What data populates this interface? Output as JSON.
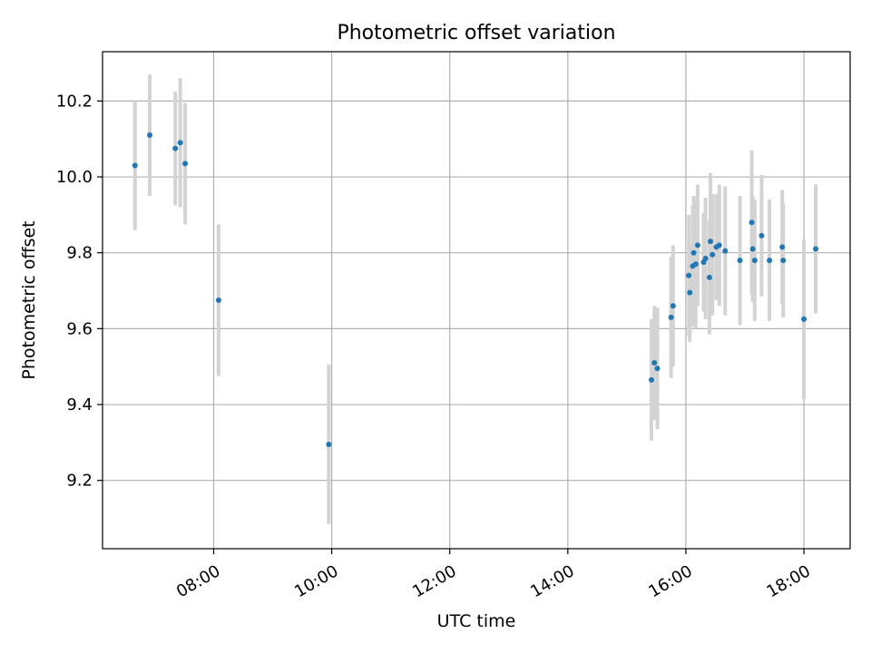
{
  "chart_data": {
    "type": "scatter",
    "title": "Photometric offset variation",
    "xlabel": "UTC time",
    "ylabel": "Photometric offset",
    "xlim": [
      "06:07",
      "18:47"
    ],
    "ylim": [
      9.02,
      10.33
    ],
    "x_ticks": [
      "08:00",
      "10:00",
      "12:00",
      "14:00",
      "16:00",
      "18:00"
    ],
    "y_ticks": [
      "9.2",
      "9.4",
      "9.6",
      "9.8",
      "10.0",
      "10.2"
    ],
    "grid": true,
    "colors": {
      "point": "#1f77b4",
      "errorbar": "#d3d3d3",
      "grid": "#b0b0b0"
    },
    "points": [
      {
        "x": "06:40",
        "y": 10.03,
        "err": 0.17
      },
      {
        "x": "06:55",
        "y": 10.11,
        "err": 0.16
      },
      {
        "x": "07:21",
        "y": 10.075,
        "err": 0.15
      },
      {
        "x": "07:26",
        "y": 10.09,
        "err": 0.17
      },
      {
        "x": "07:31",
        "y": 10.035,
        "err": 0.16
      },
      {
        "x": "08:05",
        "y": 9.675,
        "err": 0.2
      },
      {
        "x": "09:57",
        "y": 9.295,
        "err": 0.21
      },
      {
        "x": "15:25",
        "y": 9.465,
        "err": 0.16
      },
      {
        "x": "15:28",
        "y": 9.51,
        "err": 0.15
      },
      {
        "x": "15:31",
        "y": 9.495,
        "err": 0.16
      },
      {
        "x": "15:45",
        "y": 9.63,
        "err": 0.16
      },
      {
        "x": "15:47",
        "y": 9.66,
        "err": 0.16
      },
      {
        "x": "16:03",
        "y": 9.74,
        "err": 0.16
      },
      {
        "x": "16:04",
        "y": 9.695,
        "err": 0.13
      },
      {
        "x": "16:07",
        "y": 9.765,
        "err": 0.16
      },
      {
        "x": "16:08",
        "y": 9.8,
        "err": 0.15
      },
      {
        "x": "16:10",
        "y": 9.77,
        "err": 0.17
      },
      {
        "x": "16:12",
        "y": 9.82,
        "err": 0.16
      },
      {
        "x": "16:18",
        "y": 9.775,
        "err": 0.13
      },
      {
        "x": "16:20",
        "y": 9.785,
        "err": 0.16
      },
      {
        "x": "16:24",
        "y": 9.735,
        "err": 0.15
      },
      {
        "x": "16:25",
        "y": 9.83,
        "err": 0.18
      },
      {
        "x": "16:27",
        "y": 9.795,
        "err": 0.16
      },
      {
        "x": "16:31",
        "y": 9.815,
        "err": 0.14
      },
      {
        "x": "16:34",
        "y": 9.82,
        "err": 0.16
      },
      {
        "x": "16:40",
        "y": 9.805,
        "err": 0.17
      },
      {
        "x": "16:55",
        "y": 9.78,
        "err": 0.17
      },
      {
        "x": "17:07",
        "y": 9.88,
        "err": 0.19
      },
      {
        "x": "17:08",
        "y": 9.81,
        "err": 0.14
      },
      {
        "x": "17:10",
        "y": 9.78,
        "err": 0.16
      },
      {
        "x": "17:17",
        "y": 9.845,
        "err": 0.16
      },
      {
        "x": "17:25",
        "y": 9.78,
        "err": 0.16
      },
      {
        "x": "17:38",
        "y": 9.815,
        "err": 0.15
      },
      {
        "x": "17:39",
        "y": 9.78,
        "err": 0.15
      },
      {
        "x": "18:00",
        "y": 9.625,
        "err": 0.21
      },
      {
        "x": "18:12",
        "y": 9.81,
        "err": 0.17
      }
    ]
  }
}
